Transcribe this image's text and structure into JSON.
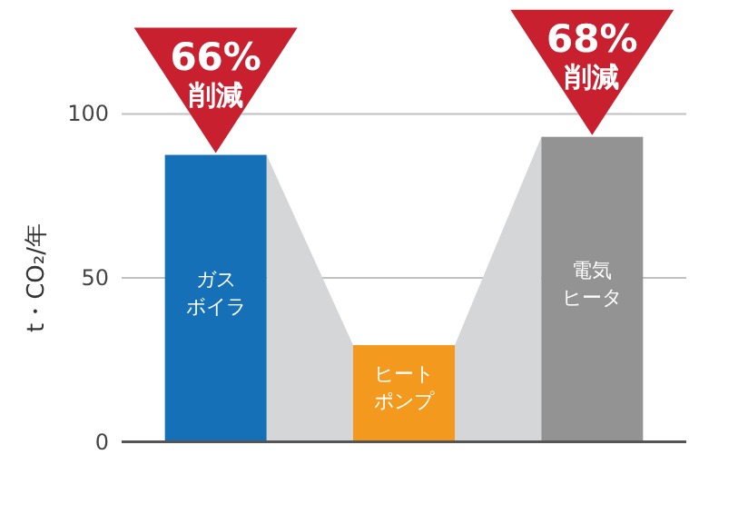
{
  "chart_data": {
    "type": "bar",
    "ylabel": "t・CO₂/年",
    "categories": [
      "ガスボイラ",
      "ヒートポンプ",
      "電気ヒータ"
    ],
    "values": [
      87.5,
      29.5,
      93
    ],
    "colors": [
      "#1570b8",
      "#f39a1e",
      "#939393"
    ],
    "ylim": [
      0,
      100
    ],
    "yticks": [
      0,
      50,
      100
    ],
    "grid": "y",
    "annotations": [
      {
        "text": "66%削減",
        "x": "ガスボイラ",
        "y": 87.5
      },
      {
        "text": "68%削減",
        "x": "電気ヒータ",
        "y": 93
      }
    ]
  }
}
